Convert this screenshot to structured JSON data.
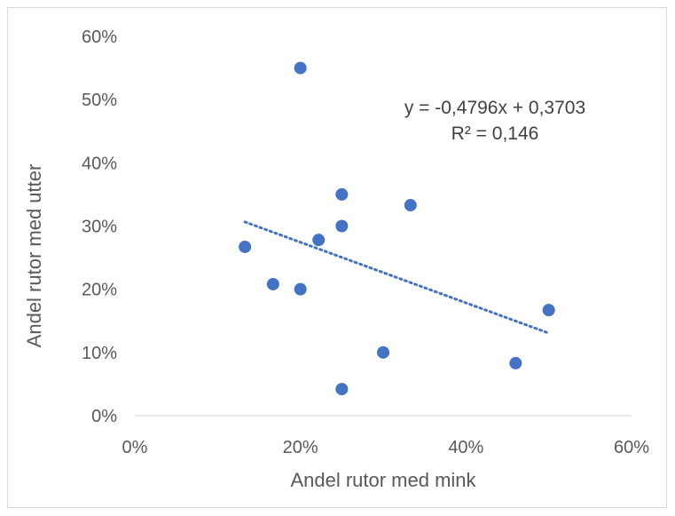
{
  "chart_data": {
    "type": "scatter",
    "xlabel": "Andel rutor med mink",
    "ylabel": "Andel rutor med utter",
    "xlim": [
      0,
      0.6
    ],
    "ylim": [
      0,
      0.6
    ],
    "x_ticks": [
      "0%",
      "20%",
      "40%",
      "60%"
    ],
    "y_ticks": [
      "0%",
      "10%",
      "20%",
      "30%",
      "40%",
      "50%",
      "60%"
    ],
    "grid": false,
    "marker_color": "#4472C4",
    "trendline_color": "#4472C4",
    "points": [
      {
        "x": 0.133,
        "y": 0.267
      },
      {
        "x": 0.167,
        "y": 0.208
      },
      {
        "x": 0.2,
        "y": 0.2
      },
      {
        "x": 0.2,
        "y": 0.55
      },
      {
        "x": 0.222,
        "y": 0.278
      },
      {
        "x": 0.25,
        "y": 0.35
      },
      {
        "x": 0.25,
        "y": 0.3
      },
      {
        "x": 0.25,
        "y": 0.042
      },
      {
        "x": 0.3,
        "y": 0.1
      },
      {
        "x": 0.333,
        "y": 0.333
      },
      {
        "x": 0.46,
        "y": 0.083
      },
      {
        "x": 0.5,
        "y": 0.167
      }
    ],
    "trendline": {
      "slope": -0.4796,
      "intercept": 0.3703,
      "x_range": [
        0.133,
        0.5
      ],
      "equation": "y = -0,4796x + 0,3703",
      "r2": "R² = 0,146"
    }
  }
}
